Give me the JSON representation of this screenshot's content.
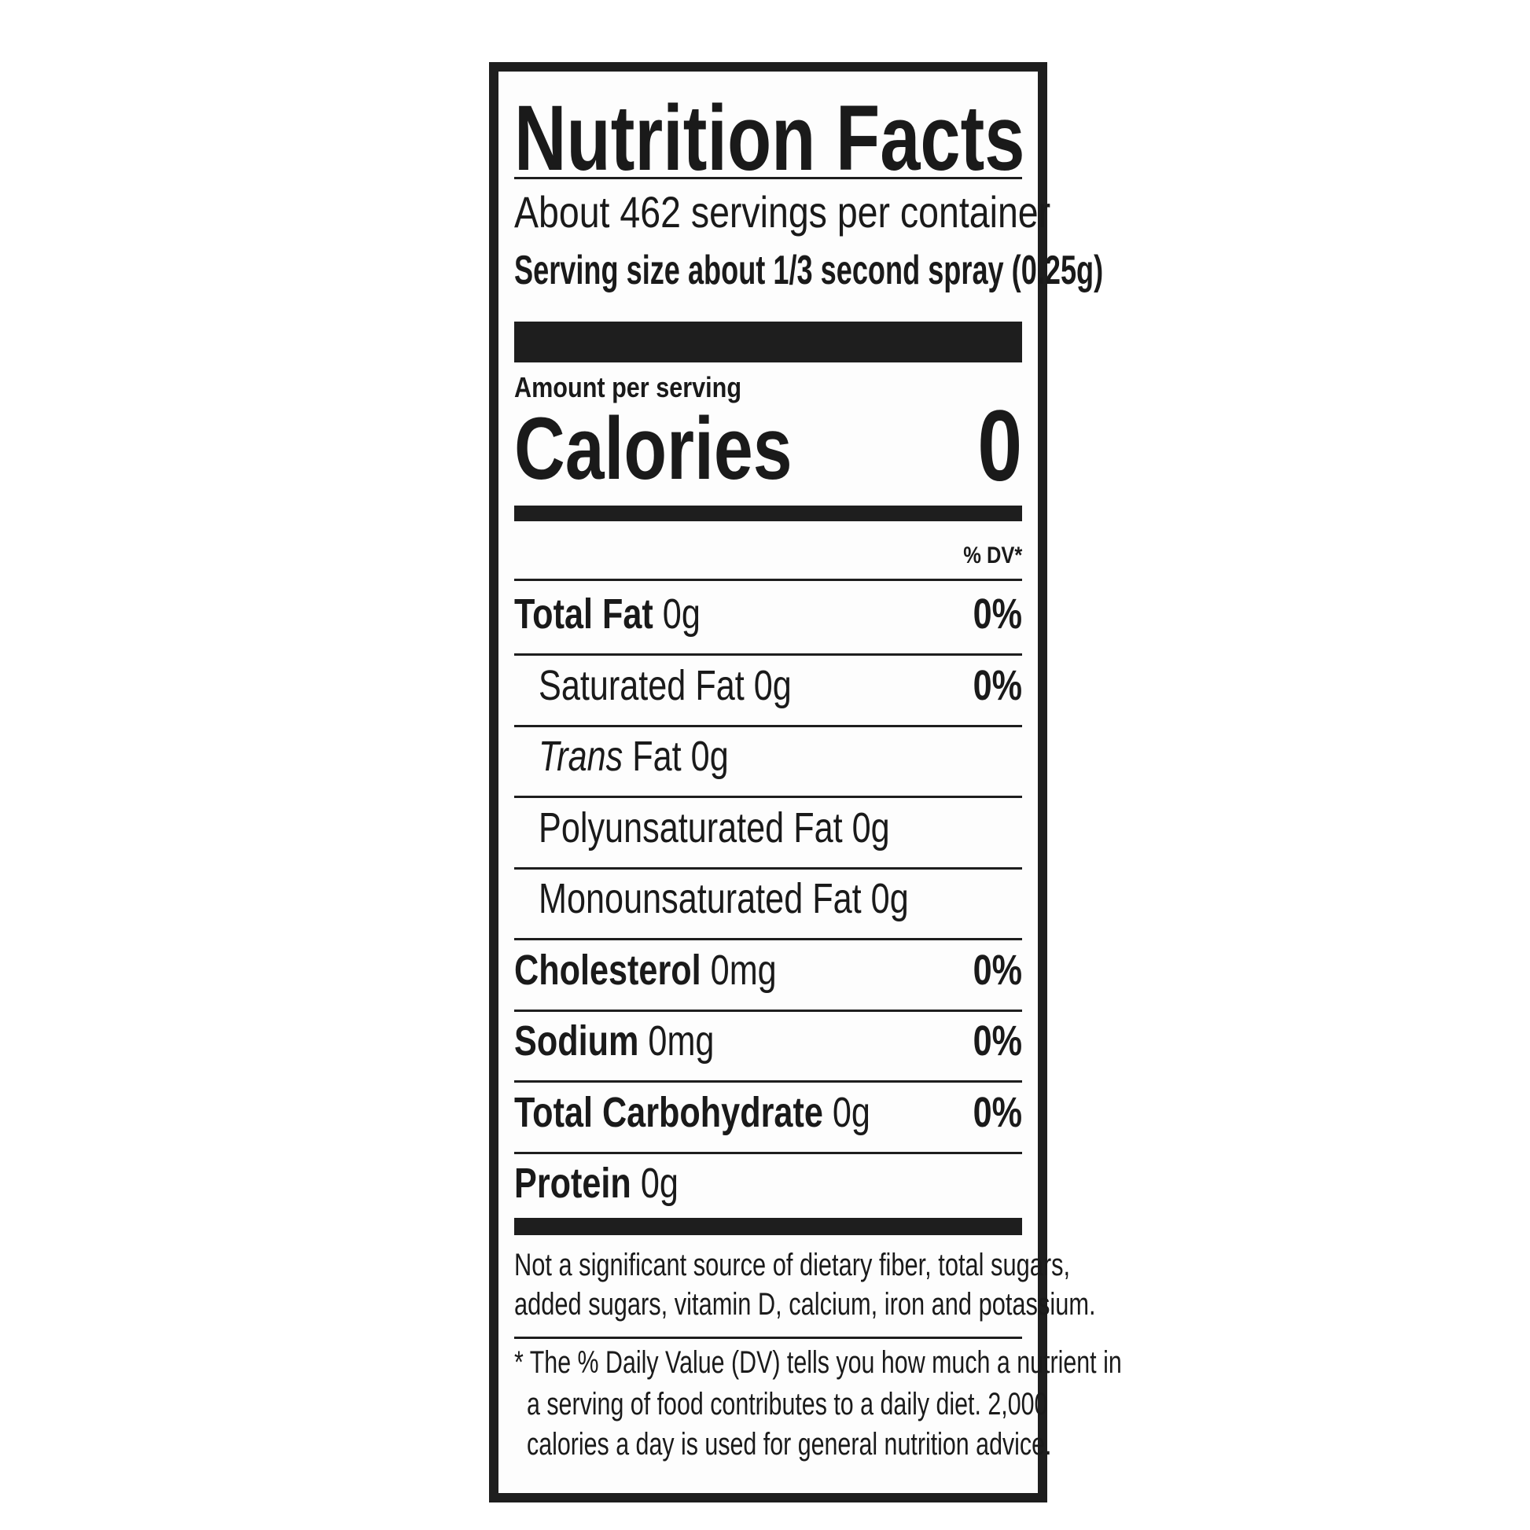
{
  "title": "Nutrition Facts",
  "servings_per_container": "About 462 servings per container",
  "serving_size": "Serving size about 1/3 second spray (0.25g)",
  "amount_per_serving": "Amount per serving",
  "calories": {
    "label": "Calories",
    "value": "0"
  },
  "dv_header": "% DV*",
  "nutrients": [
    {
      "name": "Total Fat",
      "amount": "0g",
      "dv": "0%",
      "bold": true,
      "indent": false
    },
    {
      "name": "Saturated Fat",
      "amount": "0g",
      "dv": "0%",
      "bold": false,
      "indent": true
    },
    {
      "name": "Trans",
      "name_suffix": "Fat",
      "amount": "0g",
      "dv": "",
      "bold": false,
      "indent": true
    },
    {
      "name": "Polyunsaturated Fat",
      "amount": "0g",
      "dv": "",
      "bold": false,
      "indent": true
    },
    {
      "name": "Monounsaturated Fat",
      "amount": "0g",
      "dv": "",
      "bold": false,
      "indent": true
    },
    {
      "name": "Cholesterol",
      "amount": "0mg",
      "dv": "0%",
      "bold": true,
      "indent": false
    },
    {
      "name": "Sodium",
      "amount": "0mg",
      "dv": "0%",
      "bold": true,
      "indent": false
    },
    {
      "name": "Total Carbohydrate",
      "amount": "0g",
      "dv": "0%",
      "bold": true,
      "indent": false
    },
    {
      "name": "Protein",
      "amount": "0g",
      "dv": "",
      "bold": true,
      "indent": false
    }
  ],
  "not_significant": [
    "Not a significant source of dietary fiber, total sugars,",
    "added sugars, vitamin D, calcium, iron and potassium."
  ],
  "footnote": [
    "* The % Daily Value (DV) tells you how much a nutrient in",
    "a serving of food contributes to a daily diet. 2,000",
    "calories a day is used for general nutrition advice."
  ]
}
